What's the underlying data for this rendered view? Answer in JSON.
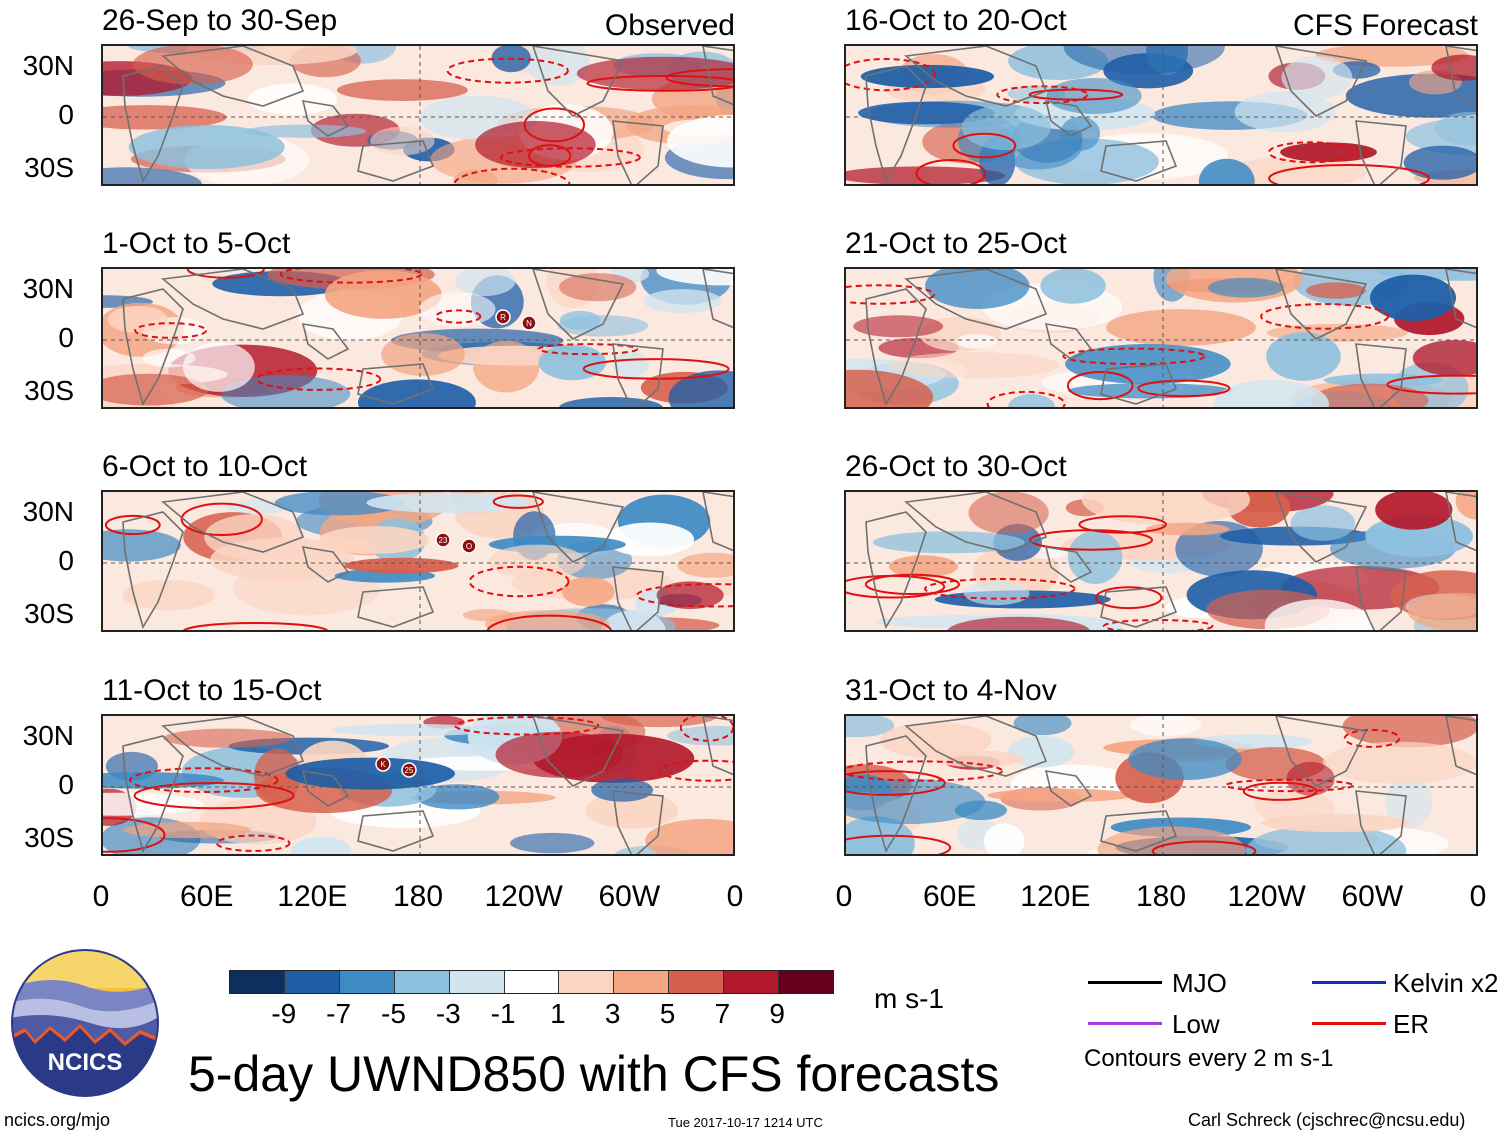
{
  "panels": [
    {
      "title": "26-Sep to 30-Sep",
      "tag": "Observed",
      "seed": 1
    },
    {
      "title": "1-Oct to 5-Oct",
      "tag": "",
      "seed": 2
    },
    {
      "title": "6-Oct to 10-Oct",
      "tag": "",
      "seed": 3
    },
    {
      "title": "11-Oct to 15-Oct",
      "tag": "",
      "seed": 4
    },
    {
      "title": "16-Oct to 20-Oct",
      "tag": "CFS Forecast",
      "seed": 5
    },
    {
      "title": "21-Oct to 25-Oct",
      "tag": "",
      "seed": 6
    },
    {
      "title": "26-Oct to 30-Oct",
      "tag": "",
      "seed": 7
    },
    {
      "title": "31-Oct to 4-Nov",
      "tag": "",
      "seed": 8
    }
  ],
  "lat_labels": [
    "30N",
    "0",
    "30S"
  ],
  "lon_labels": [
    "0",
    "60E",
    "120E",
    "180",
    "120W",
    "60W",
    "0"
  ],
  "colorbar": {
    "ticks": [
      "-9",
      "-7",
      "-5",
      "-3",
      "-1",
      "1",
      "3",
      "5",
      "7",
      "9"
    ],
    "colors": [
      "#0b2f5e",
      "#1f5fa8",
      "#3d8ac4",
      "#8dc0de",
      "#d1e5f0",
      "#ffffff",
      "#fbd5c3",
      "#f4a582",
      "#d6604d",
      "#b2182b",
      "#67001f"
    ],
    "units": "m s-1"
  },
  "legend": {
    "items": [
      {
        "label": "MJO",
        "color": "#000000"
      },
      {
        "label": "Low",
        "color": "#a040e0"
      },
      {
        "label": "Kelvin x2",
        "color": "#1030c0"
      },
      {
        "label": "ER",
        "color": "#e01010"
      }
    ],
    "note": "Contours every 2 m s-1"
  },
  "title": "5-day UWND850 with CFS forecasts",
  "logo_text": "NCICS",
  "footer": {
    "left": "ncics.org/mjo",
    "center": "Tue 2017-10-17 1214 UTC",
    "right": "Carl Schreck (cjschrec@ncsu.edu)"
  },
  "storm_markers": {
    "1": [
      "R",
      "N"
    ],
    "2": [
      "23",
      "O"
    ],
    "3": [
      "K",
      "25"
    ]
  }
}
